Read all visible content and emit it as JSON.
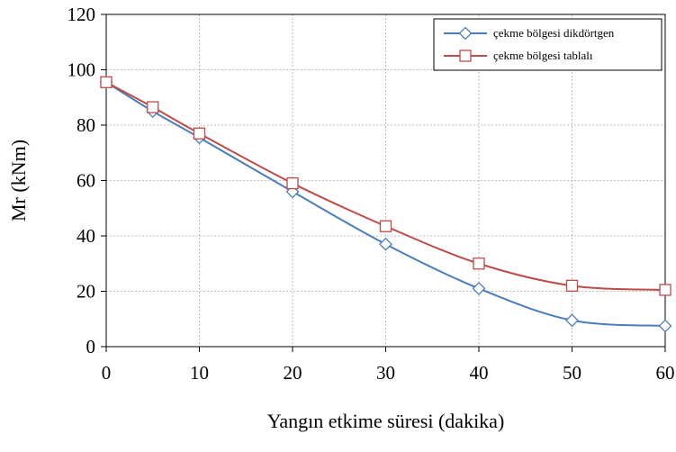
{
  "chart_data": {
    "type": "line",
    "title": "",
    "xlabel": "Yangın etkime süresi (dakika)",
    "ylabel": "Mr  (kNm)",
    "xlim": [
      0,
      60
    ],
    "ylim": [
      0,
      120
    ],
    "xticks": [
      0,
      10,
      20,
      30,
      40,
      50,
      60
    ],
    "yticks": [
      0,
      20,
      40,
      60,
      80,
      100,
      120
    ],
    "grid": true,
    "legend_position": "top-right",
    "series": [
      {
        "name": "çekme bölgesi dikdörtgen",
        "color": "#4a7ebb",
        "marker": "diamond",
        "x": [
          0,
          5,
          10,
          20,
          30,
          40,
          50,
          60
        ],
        "y": [
          95.5,
          85,
          75.5,
          56,
          37,
          21,
          9.5,
          7.5
        ]
      },
      {
        "name": "çekme bölgesi tablalı",
        "color": "#be4b48",
        "marker": "square",
        "x": [
          0,
          5,
          10,
          20,
          30,
          40,
          50,
          60
        ],
        "y": [
          95.5,
          86.5,
          77,
          59,
          43.5,
          30,
          22,
          20.5
        ]
      }
    ]
  }
}
